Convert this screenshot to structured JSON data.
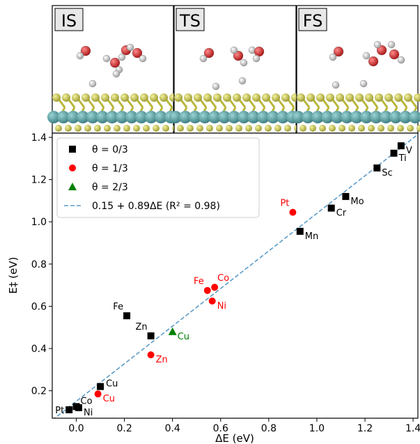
{
  "panels": [
    {
      "label": "IS"
    },
    {
      "label": "TS"
    },
    {
      "label": "FS"
    }
  ],
  "colors": {
    "theta0": "#000000",
    "theta1": "#ff0000",
    "theta2": "#008000",
    "fit": "#5b9cc8",
    "sulfur": "#d4d25a",
    "metal": "#5aa8a8",
    "oxygen": "#d62a2a",
    "hydrogen": "#e6e6e6"
  },
  "chart_data": {
    "type": "scatter",
    "xlabel": "ΔE (eV)",
    "ylabel": "E‡ (eV)",
    "xlim": [
      -0.1,
      1.42
    ],
    "ylim": [
      0.07,
      1.42
    ],
    "xticks": [
      {
        "v": 0.0,
        "label": "0.0"
      },
      {
        "v": 0.2,
        "label": "0.2"
      },
      {
        "v": 0.4,
        "label": "0.4"
      },
      {
        "v": 0.6,
        "label": "0.6"
      },
      {
        "v": 0.8,
        "label": "0.8"
      },
      {
        "v": 1.0,
        "label": "1.0"
      },
      {
        "v": 1.2,
        "label": "1.2"
      },
      {
        "v": 1.4,
        "label": "1.4"
      }
    ],
    "yticks": [
      {
        "v": 0.2,
        "label": "0.2"
      },
      {
        "v": 0.4,
        "label": "0.4"
      },
      {
        "v": 0.6,
        "label": "0.6"
      },
      {
        "v": 0.8,
        "label": "0.8"
      },
      {
        "v": 1.0,
        "label": "1.0"
      },
      {
        "v": 1.2,
        "label": "1.2"
      },
      {
        "v": 1.4,
        "label": "1.4"
      }
    ],
    "legend_position": "top-left",
    "legend": [
      {
        "label": "θ = 0/3",
        "marker": "square",
        "series": 0
      },
      {
        "label": "θ = 1/3",
        "marker": "circle",
        "series": 1
      },
      {
        "label": "θ = 2/3",
        "marker": "triangle",
        "series": 2
      },
      {
        "label": "0.15 + 0.89ΔE (R² =  0.98)",
        "marker": "dashed-line",
        "series": 3
      }
    ],
    "series": [
      {
        "name": "θ = 0/3",
        "points": [
          {
            "x": -0.03,
            "y": 0.11,
            "label": "Pt",
            "lpos": "left"
          },
          {
            "x": 0.0,
            "y": 0.125,
            "label": "Co",
            "lpos": "right-up"
          },
          {
            "x": 0.01,
            "y": 0.12,
            "label": "Ni",
            "lpos": "right-down"
          },
          {
            "x": 0.1,
            "y": 0.22,
            "label": "Cu",
            "lpos": "right"
          },
          {
            "x": 0.21,
            "y": 0.555,
            "label": "Fe",
            "lpos": "up-left"
          },
          {
            "x": 0.31,
            "y": 0.46,
            "label": "Zn",
            "lpos": "up-left"
          },
          {
            "x": 0.93,
            "y": 0.955,
            "label": "Mn",
            "lpos": "right-down"
          },
          {
            "x": 1.06,
            "y": 1.065,
            "label": "Cr",
            "lpos": "right-down"
          },
          {
            "x": 1.12,
            "y": 1.12,
            "label": "Mo",
            "lpos": "right-down"
          },
          {
            "x": 1.25,
            "y": 1.255,
            "label": "Sc",
            "lpos": "right-down"
          },
          {
            "x": 1.32,
            "y": 1.325,
            "label": "Ti",
            "lpos": "right-down"
          },
          {
            "x": 1.35,
            "y": 1.36,
            "label": "V",
            "lpos": "right-down"
          }
        ]
      },
      {
        "name": "θ = 1/3",
        "points": [
          {
            "x": 0.09,
            "y": 0.185,
            "label": "Cu",
            "lpos": "right-down"
          },
          {
            "x": 0.31,
            "y": 0.37,
            "label": "Zn",
            "lpos": "right-down"
          },
          {
            "x": 0.545,
            "y": 0.675,
            "label": "Fe",
            "lpos": "up-left"
          },
          {
            "x": 0.565,
            "y": 0.625,
            "label": "Ni",
            "lpos": "right-down"
          },
          {
            "x": 0.575,
            "y": 0.69,
            "label": "Co",
            "lpos": "up-right"
          },
          {
            "x": 0.9,
            "y": 1.045,
            "label": "Pt",
            "lpos": "up-left"
          }
        ]
      },
      {
        "name": "θ = 2/3",
        "points": [
          {
            "x": 0.4,
            "y": 0.48,
            "label": "Cu",
            "lpos": "right-down"
          }
        ]
      }
    ],
    "fit": {
      "intercept": 0.15,
      "slope": 0.89
    }
  }
}
